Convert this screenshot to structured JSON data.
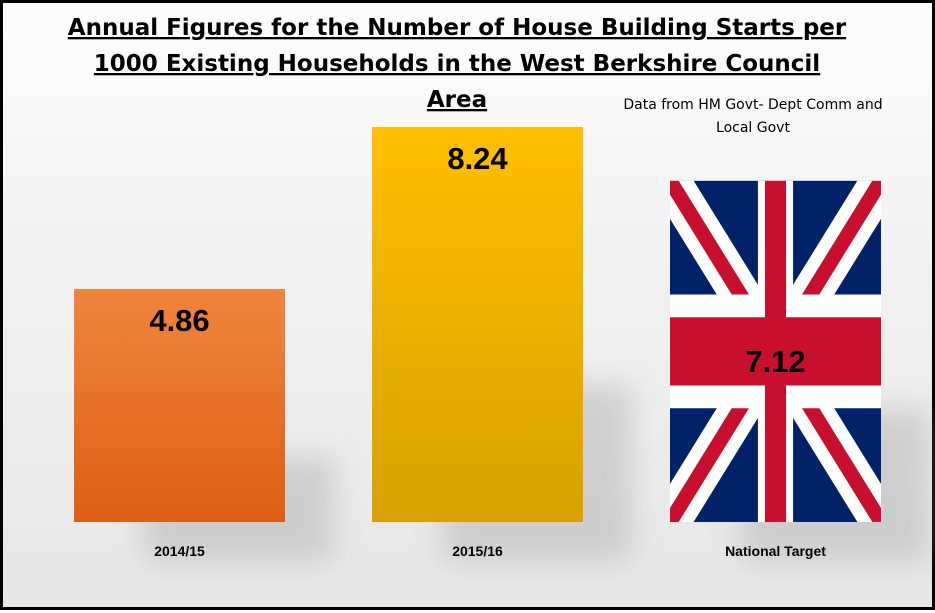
{
  "chart_data": {
    "type": "bar",
    "title": "Annual Figures for the Number of House Building Starts per 1000 Existing Households in the West Berkshire Council Area",
    "title_lines": [
      "Annual Figures for the Number of House Building Starts per",
      "1000 Existing Households in the West Berkshire Council",
      "Area"
    ],
    "source_note_lines": [
      "Data from HM Govt- Dept Comm and",
      "Local Govt"
    ],
    "categories": [
      "2014/15",
      "2015/16",
      "National Target"
    ],
    "values": [
      4.86,
      8.24,
      7.12
    ],
    "value_labels": [
      "4.86",
      "8.24",
      "7.12"
    ],
    "bar_colors": [
      "#e8702a",
      "#f4b400",
      "union-jack-flag"
    ],
    "xlabel": "",
    "ylabel": "",
    "ylim": [
      0,
      8.24
    ],
    "grid": false,
    "legend": "none"
  }
}
